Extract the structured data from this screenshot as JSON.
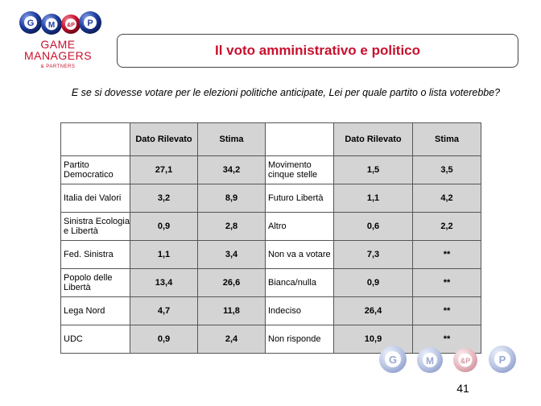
{
  "logo": {
    "balls": [
      "G",
      "M",
      "&P",
      "P"
    ],
    "line1": "GAME",
    "line2": "MANAGERS",
    "sub": "& PARTNERS"
  },
  "slide_title": "Il voto amministrativo e politico",
  "question": "E se si dovesse votare per le elezioni politiche anticipate, Lei per quale partito o lista voterebbe?",
  "table": {
    "headers": [
      "",
      "Dato Rilevato",
      "Stima",
      "",
      "Dato Rilevato",
      "Stima"
    ],
    "rows": [
      {
        "left_label": "Partito Democratico",
        "left_dato": "27,1",
        "left_stima": "34,2",
        "right_label": "Movimento cinque stelle",
        "right_dato": "1,5",
        "right_stima": "3,5"
      },
      {
        "left_label": "Italia dei Valori",
        "left_dato": "3,2",
        "left_stima": "8,9",
        "right_label": "Futuro Libertà",
        "right_dato": "1,1",
        "right_stima": "4,2"
      },
      {
        "left_label": "Sinistra Ecologia e Libertà",
        "left_dato": "0,9",
        "left_stima": "2,8",
        "right_label": "Altro",
        "right_dato": "0,6",
        "right_stima": "2,2"
      },
      {
        "left_label": "Fed. Sinistra",
        "left_dato": "1,1",
        "left_stima": "3,4",
        "right_label": "Non va a votare",
        "right_dato": "7,3",
        "right_stima": "**"
      },
      {
        "left_label": "Popolo delle Libertà",
        "left_dato": "13,4",
        "left_stima": "26,6",
        "right_label": "Bianca/nulla",
        "right_dato": "0,9",
        "right_stima": "**"
      },
      {
        "left_label": "Lega Nord",
        "left_dato": "4,7",
        "left_stima": "11,8",
        "right_label": "Indeciso",
        "right_dato": "26,4",
        "right_stima": "**"
      },
      {
        "left_label": "UDC",
        "left_dato": "0,9",
        "left_stima": "2,4",
        "right_label": "Non risponde",
        "right_dato": "10,9",
        "right_stima": "**"
      }
    ]
  },
  "bottom_logo": {
    "balls": [
      "G",
      "M",
      "&P",
      "P"
    ]
  },
  "page_number": "41",
  "colors": {
    "brand_red": "#c8102e",
    "ball_blue": "#1f3fa0",
    "cell_gray": "#d4d4d4"
  }
}
